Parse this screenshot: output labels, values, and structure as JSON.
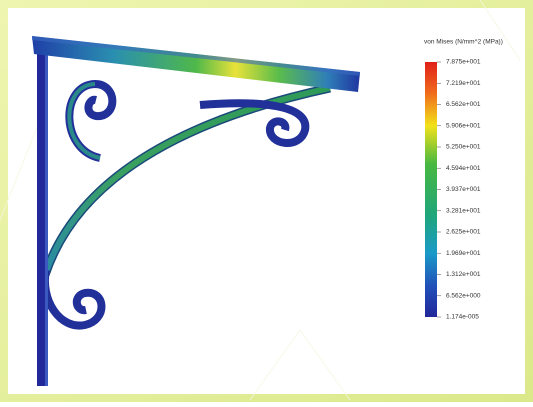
{
  "legend": {
    "title": "von Mises (N/mm^2 (MPa))",
    "labels": [
      "7.875e+001",
      "7.219e+001",
      "6.562e+001",
      "5.906e+001",
      "5.250e+001",
      "4.594e+001",
      "3.937e+001",
      "3.281e+001",
      "2.625e+001",
      "1.969e+001",
      "1.312e+001",
      "6.562e+000",
      "1.174e-005"
    ]
  }
}
